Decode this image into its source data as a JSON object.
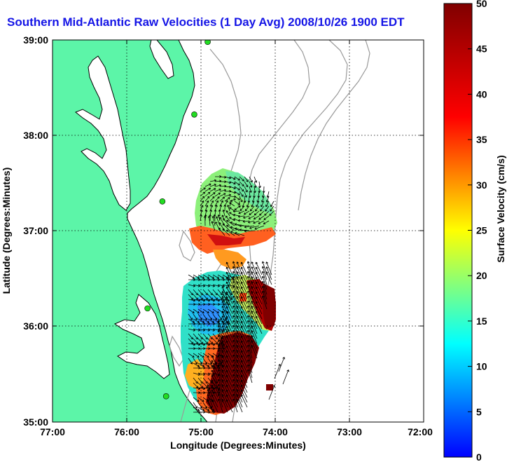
{
  "title": "Southern Mid-Atlantic Raw Velocities (1 Day Avg) 2008/10/26 1900 EDT",
  "x_axis": {
    "label": "Longitude (Degrees:Minutes)",
    "ticks": [
      "77:00",
      "76:00",
      "75:00",
      "74:00",
      "73:00",
      "72:00"
    ],
    "range": [
      -77,
      -72
    ]
  },
  "y_axis": {
    "label": "Latitude (Degrees:Minutes)",
    "ticks": [
      "39:00",
      "38:00",
      "37:00",
      "36:00",
      "35:00"
    ],
    "range": [
      35,
      39
    ]
  },
  "colorbar": {
    "label": "Surface Velocity (cm/s)",
    "ticks": [
      "0",
      "5",
      "10",
      "15",
      "20",
      "25",
      "30",
      "35",
      "40",
      "45",
      "50"
    ],
    "range": [
      0,
      50
    ]
  },
  "colors": {
    "land": "#5cf5a8",
    "coast": "#000000",
    "bathymetry": "#999999",
    "station": "#22dd22",
    "title": "#1414e6"
  },
  "stations": [
    {
      "lon": -74.91,
      "lat": 38.98
    },
    {
      "lon": -75.09,
      "lat": 38.22
    },
    {
      "lon": -75.52,
      "lat": 37.31
    },
    {
      "lon": -75.72,
      "lat": 36.19
    },
    {
      "lon": -75.47,
      "lat": 35.27
    }
  ]
}
